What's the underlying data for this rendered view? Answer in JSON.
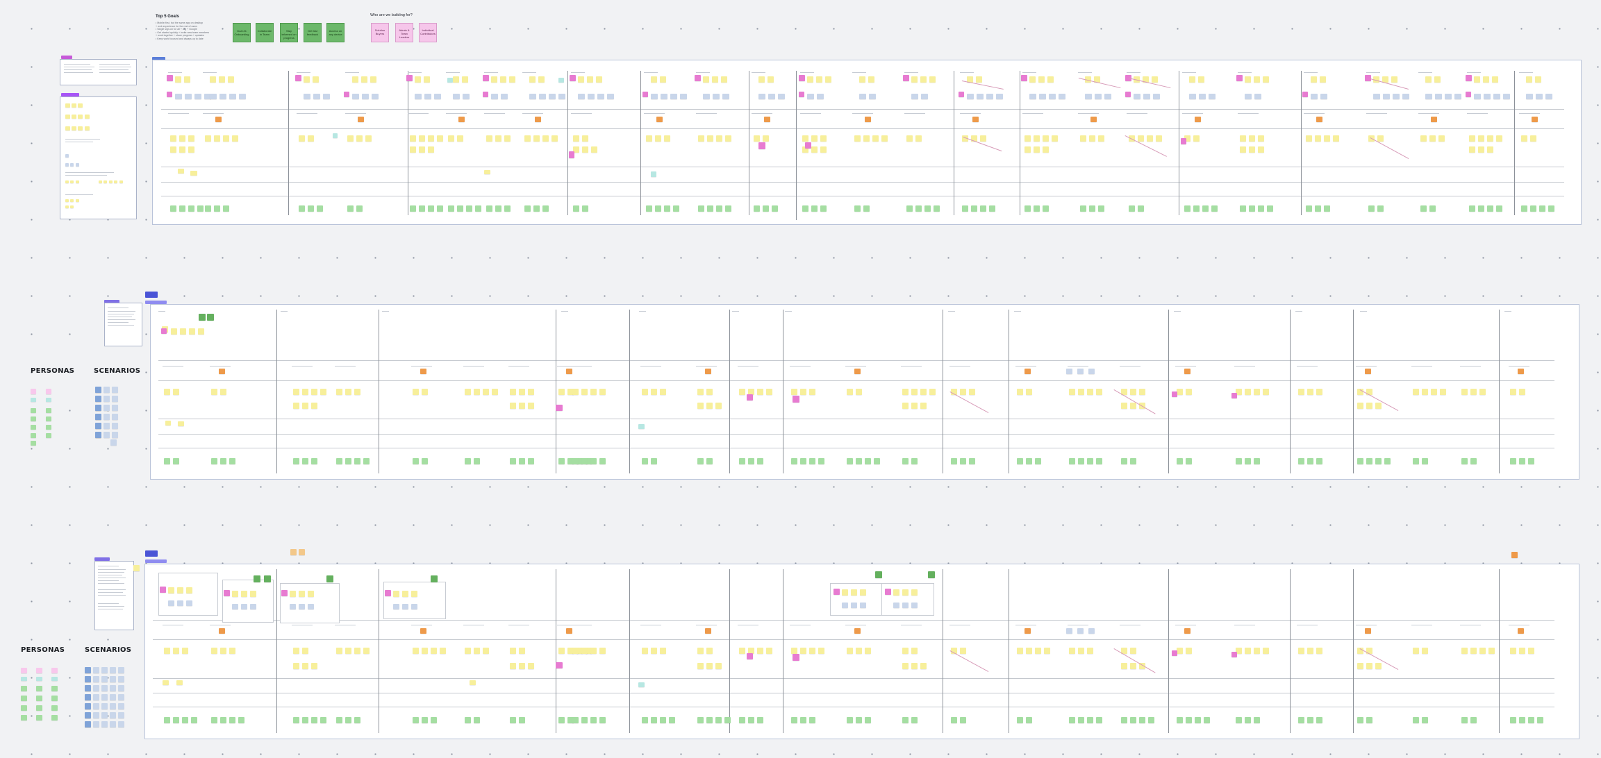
{
  "top_goals": {
    "title": "Top 5 Goals",
    "note_lines": [
      "• Mobile-first, but the same app on desktop",
      "  + web experience for the rest of users",
      "  • Single sign-on for all + org + Google",
      "• Get started quickly + invite new team members",
      "  + work together + share progress + updates",
      "• Keep work focused and always up to date"
    ]
  },
  "goal_buttons": [
    "Goal #1 Onboarding",
    "Collaborate in Team",
    "Stay informed on progress",
    "Get fast feedback",
    "Access on any device"
  ],
  "audience": {
    "title": "Who are we building for?",
    "buttons": [
      "Solution Buyers",
      "Admin & Team Leaders",
      "Individual Contributors"
    ]
  },
  "sections": {
    "personas_label": "PERSONAS",
    "scenarios_label": "SCENARIOS"
  },
  "colors": {
    "sticky_yellow": "#f7ef9b",
    "sticky_blue": "#c9d6ea",
    "sticky_pink": "#e77bd1",
    "sticky_orange": "#ee9a4a",
    "sticky_green": "#a5dea2",
    "frame_accent": "#5b7fd9",
    "chip_purple": "#a855f7"
  }
}
